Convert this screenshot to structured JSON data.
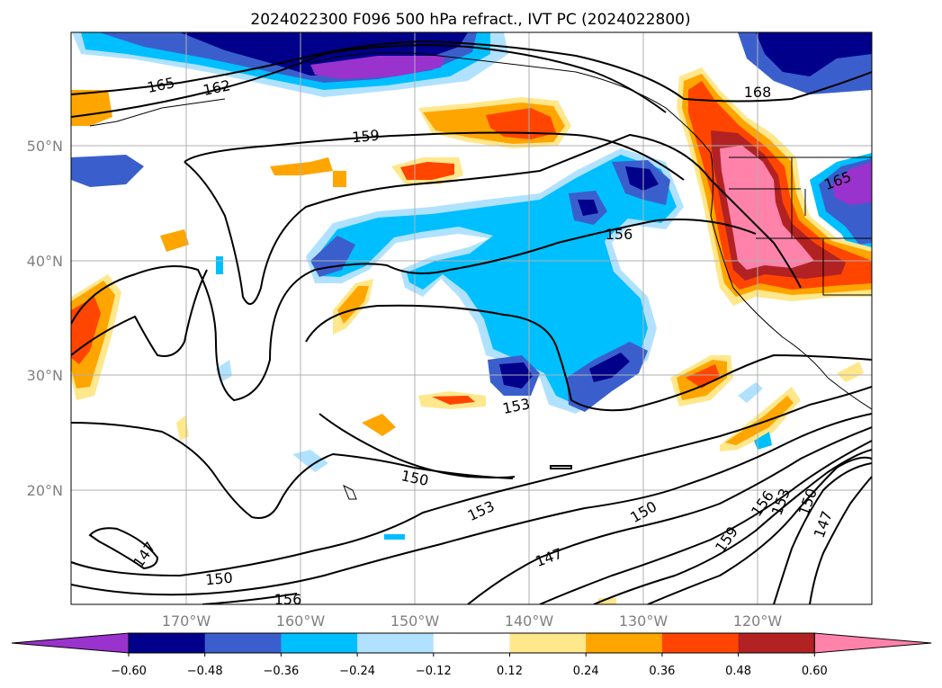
{
  "title": "2024022300 F096 500 hPa refract., IVT PC (2024022800)",
  "map": {
    "lat_labels": [
      "50°N",
      "40°N",
      "30°N",
      "20°N"
    ],
    "lon_labels": [
      "170°W",
      "160°W",
      "150°W",
      "140°W",
      "130°W",
      "120°W"
    ],
    "contour_labels": [
      "165",
      "162",
      "159",
      "168",
      "165",
      "156",
      "153",
      "150",
      "153",
      "150",
      "147",
      "150",
      "156",
      "159",
      "156",
      "153",
      "150",
      "147"
    ],
    "colors": {
      "background": "#ffffff",
      "gridline": "#b0b0b0",
      "contour": "#000000",
      "coastline": "#000000"
    }
  },
  "colorbar": {
    "ticks": [
      "−0.60",
      "−0.48",
      "−0.36",
      "−0.24",
      "−0.12",
      "0.12",
      "0.24",
      "0.36",
      "0.48",
      "0.60"
    ],
    "colors": [
      "#9a32cd",
      "#00008b",
      "#3a5fcd",
      "#00bfff",
      "#b0e2ff",
      "#ffffff",
      "#ffe78c",
      "#ffa500",
      "#ff4500",
      "#b22222",
      "#ff82ab"
    ]
  }
}
